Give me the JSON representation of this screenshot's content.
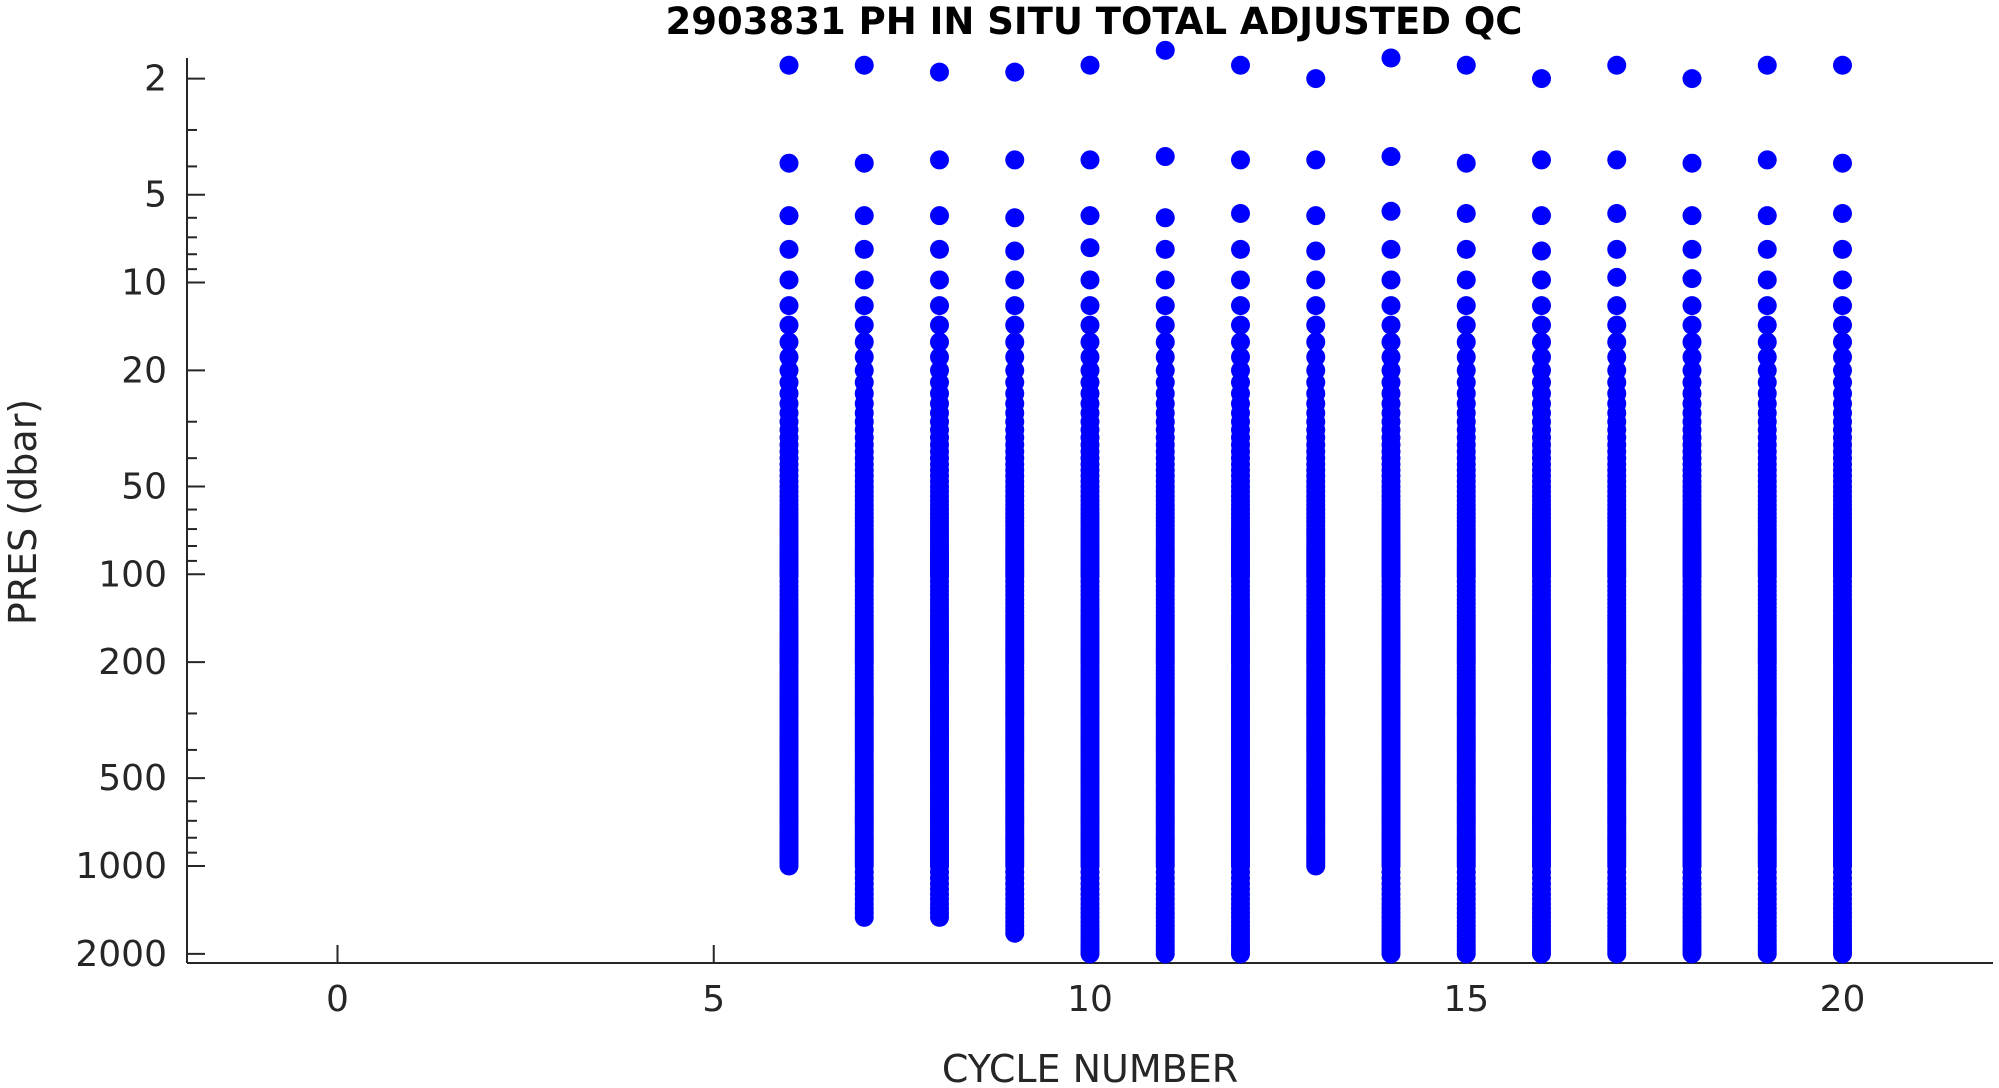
{
  "chart_data": {
    "type": "scatter",
    "title": "2903831  PH IN SITU TOTAL ADJUSTED QC",
    "xlabel": "CYCLE NUMBER",
    "ylabel": "PRES (dbar)",
    "xlim": [
      -2,
      22
    ],
    "ylim": [
      1.7,
      2150
    ],
    "y_scale": "log",
    "y_reversed": true,
    "grid": false,
    "legend": "none",
    "marker_color": "#0000ff",
    "x_ticks": [
      0,
      5,
      10,
      15,
      20
    ],
    "x_tick_labels": [
      "0",
      "5",
      "10",
      "15",
      "20"
    ],
    "y_ticks": [
      2,
      5,
      10,
      20,
      50,
      100,
      200,
      500,
      1000,
      2000
    ],
    "y_tick_labels": [
      "2",
      "5",
      "10",
      "20",
      "50",
      "100",
      "200",
      "500",
      "1000",
      "2000"
    ],
    "series": [
      {
        "values": [
          {
            "cycle": 6,
            "pres": [
              1.8,
              3.9,
              5.9,
              7.7,
              9.8
            ],
            "dense_from": 12,
            "dense_to": 1000
          },
          {
            "cycle": 7,
            "pres": [
              1.8,
              3.9,
              5.9,
              7.7,
              9.8
            ],
            "dense_from": 12,
            "dense_to": 1500
          },
          {
            "cycle": 8,
            "pres": [
              1.9,
              3.8,
              5.9,
              7.7,
              9.8
            ],
            "dense_from": 12,
            "dense_to": 1500
          },
          {
            "cycle": 9,
            "pres": [
              1.9,
              3.8,
              6.0,
              7.8,
              9.8
            ],
            "dense_from": 12,
            "dense_to": 1700
          },
          {
            "cycle": 10,
            "pres": [
              1.8,
              3.8,
              5.9,
              7.6,
              9.8
            ],
            "dense_from": 12,
            "dense_to": 2000
          },
          {
            "cycle": 11,
            "pres": [
              1.6,
              3.7,
              6.0,
              7.7,
              9.8
            ],
            "dense_from": 12,
            "dense_to": 2000
          },
          {
            "cycle": 12,
            "pres": [
              1.8,
              3.8,
              5.8,
              7.7,
              9.8
            ],
            "dense_from": 12,
            "dense_to": 2000
          },
          {
            "cycle": 13,
            "pres": [
              2.0,
              3.8,
              5.9,
              7.8,
              9.8
            ],
            "dense_from": 12,
            "dense_to": 1000
          },
          {
            "cycle": 14,
            "pres": [
              1.7,
              3.7,
              5.7,
              7.7,
              9.8
            ],
            "dense_from": 12,
            "dense_to": 2000
          },
          {
            "cycle": 15,
            "pres": [
              1.8,
              3.9,
              5.8,
              7.7,
              9.8
            ],
            "dense_from": 12,
            "dense_to": 2000
          },
          {
            "cycle": 16,
            "pres": [
              2.0,
              3.8,
              5.9,
              7.8,
              9.8
            ],
            "dense_from": 12,
            "dense_to": 2000
          },
          {
            "cycle": 17,
            "pres": [
              1.8,
              3.8,
              5.8,
              7.7,
              9.6
            ],
            "dense_from": 12,
            "dense_to": 2000
          },
          {
            "cycle": 18,
            "pres": [
              2.0,
              3.9,
              5.9,
              7.7,
              9.7
            ],
            "dense_from": 12,
            "dense_to": 2000
          },
          {
            "cycle": 19,
            "pres": [
              1.8,
              3.8,
              5.9,
              7.7,
              9.8
            ],
            "dense_from": 12,
            "dense_to": 2000
          },
          {
            "cycle": 20,
            "pres": [
              1.8,
              3.9,
              5.8,
              7.7,
              9.8
            ],
            "dense_from": 12,
            "dense_to": 2000
          }
        ]
      }
    ]
  }
}
